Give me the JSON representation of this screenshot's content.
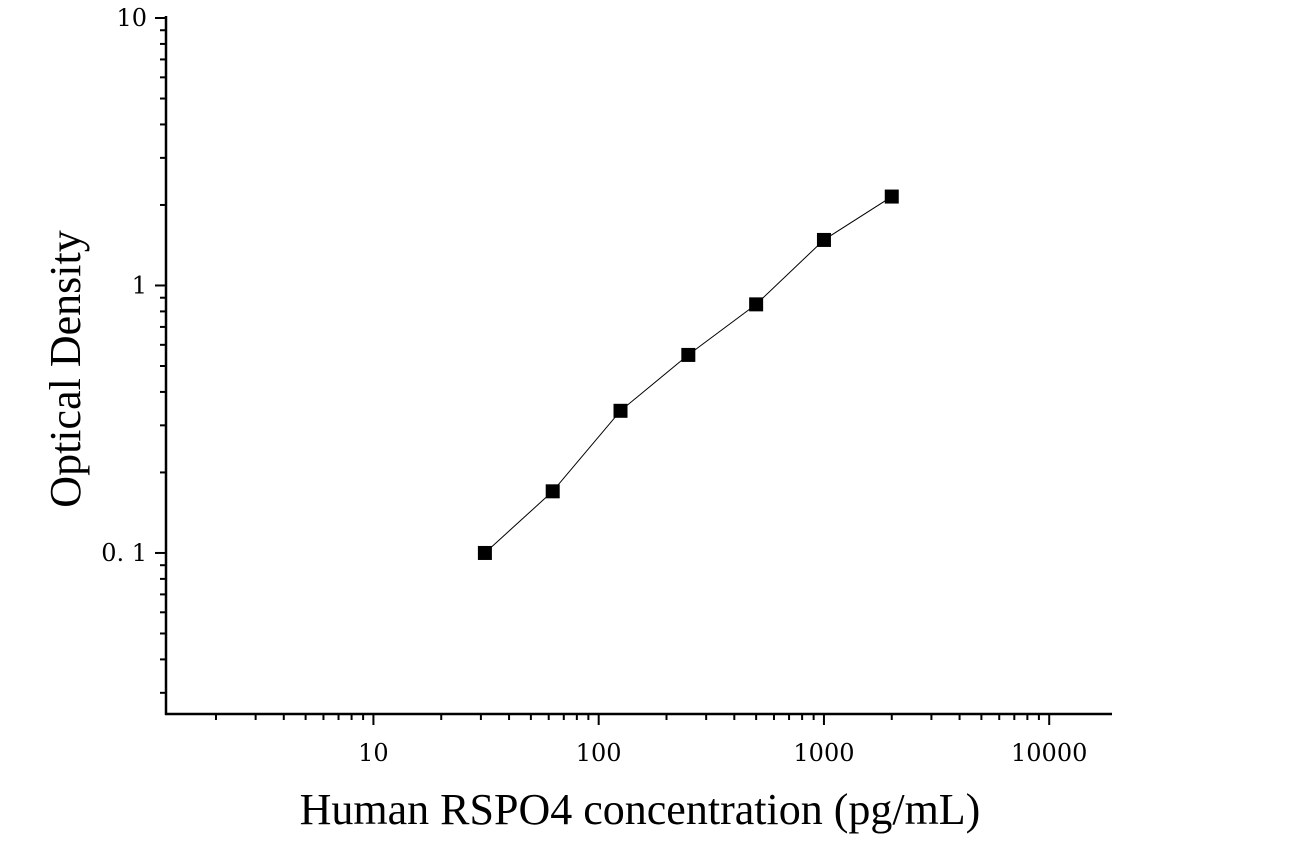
{
  "chart_data": {
    "type": "scatter",
    "title": "",
    "xlabel": "Human RSPO4 concentration (pg/mL)",
    "ylabel": "Optical Density",
    "xscale": "log",
    "yscale": "log",
    "xlim": [
      1.2,
      19000
    ],
    "ylim": [
      0.025,
      10
    ],
    "x_ticks": [
      10,
      100,
      1000,
      10000
    ],
    "x_tick_labels": [
      "10",
      "100",
      "1000",
      "10000"
    ],
    "y_ticks": [
      0.1,
      1,
      10
    ],
    "y_tick_labels": [
      "0. 1",
      "1",
      "10"
    ],
    "grid": false,
    "legend": "none",
    "marker": "square",
    "color": "#000000",
    "series": [
      {
        "x": [
          31.25,
          62.5,
          125,
          250,
          500,
          1000,
          2000
        ],
        "y": [
          0.1,
          0.17,
          0.34,
          0.55,
          0.85,
          1.48,
          2.15
        ]
      }
    ]
  }
}
